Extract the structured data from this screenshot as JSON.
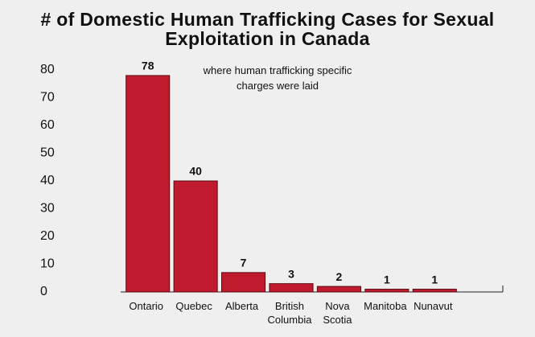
{
  "chart_data": {
    "type": "bar",
    "title": "# of Domestic Human Trafficking Cases for Sexual Exploitation in Canada",
    "subtitle": "where human trafficking specific charges were laid",
    "categories": [
      "Ontario",
      "Quebec",
      "Alberta",
      "British Columbia",
      "Nova Scotia",
      "Manitoba",
      "Nunavut"
    ],
    "values": [
      78,
      40,
      7,
      3,
      2,
      1,
      1
    ],
    "color": "#c01a2e",
    "ylim": [
      0,
      80
    ],
    "yticks": [
      0,
      10,
      20,
      30,
      40,
      50,
      60,
      70,
      80
    ],
    "grid": false
  }
}
